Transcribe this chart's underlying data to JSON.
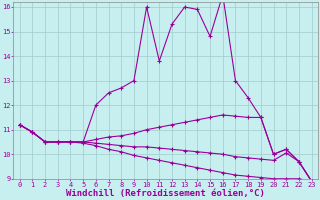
{
  "xlabel": "Windchill (Refroidissement éolien,°C)",
  "background_color": "#c8eff0",
  "grid_color": "#a0cccc",
  "line_color": "#990099",
  "xlim": [
    -0.5,
    23.5
  ],
  "ylim": [
    9,
    16.2
  ],
  "xticks": [
    0,
    1,
    2,
    3,
    4,
    5,
    6,
    7,
    8,
    9,
    10,
    11,
    12,
    13,
    14,
    15,
    16,
    17,
    18,
    19,
    20,
    21,
    22,
    23
  ],
  "yticks": [
    9,
    10,
    11,
    12,
    13,
    14,
    15,
    16
  ],
  "series": [
    [
      11.2,
      10.9,
      10.5,
      10.5,
      10.5,
      10.5,
      12.0,
      12.5,
      12.7,
      13.0,
      16.0,
      13.8,
      15.3,
      16.0,
      15.9,
      14.8,
      16.5,
      13.0,
      12.3,
      11.5,
      10.0,
      10.2,
      9.7,
      8.9
    ],
    [
      11.2,
      10.9,
      10.5,
      10.5,
      10.5,
      10.5,
      10.6,
      10.7,
      10.75,
      10.85,
      11.0,
      11.1,
      11.2,
      11.3,
      11.4,
      11.5,
      11.6,
      11.55,
      11.5,
      11.5,
      10.0,
      10.2,
      9.7,
      8.9
    ],
    [
      11.2,
      10.9,
      10.5,
      10.5,
      10.5,
      10.5,
      10.45,
      10.4,
      10.35,
      10.3,
      10.3,
      10.25,
      10.2,
      10.15,
      10.1,
      10.05,
      10.0,
      9.9,
      9.85,
      9.8,
      9.75,
      10.05,
      9.7,
      8.9
    ],
    [
      11.2,
      10.9,
      10.5,
      10.5,
      10.5,
      10.45,
      10.35,
      10.2,
      10.1,
      9.95,
      9.85,
      9.75,
      9.65,
      9.55,
      9.45,
      9.35,
      9.25,
      9.15,
      9.1,
      9.05,
      9.0,
      9.0,
      9.0,
      8.9
    ]
  ],
  "marker": "+",
  "markersize": 3,
  "linewidth": 0.8,
  "tick_fontsize": 5,
  "label_fontsize": 6.5
}
